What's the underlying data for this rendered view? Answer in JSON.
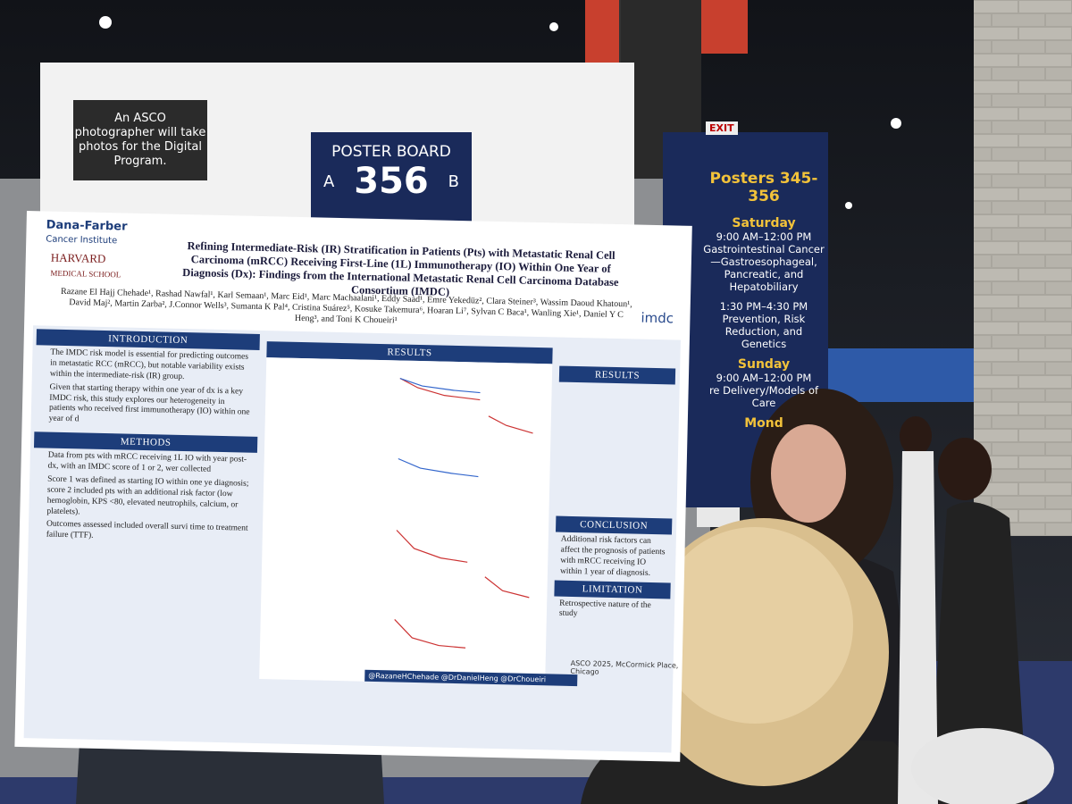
{
  "photo_sign": {
    "text": "An ASCO photographer will take photos for the Digital Program."
  },
  "board_sign": {
    "label": "POSTER BOARD",
    "left": "A",
    "number": "356",
    "right": "B"
  },
  "exit_sign": "EXIT",
  "session_sign": {
    "title": "Posters 345-356",
    "entries": [
      {
        "day": "Saturday"
      },
      {
        "time": "9:00 AM–12:00 PM",
        "topic": "Gastrointestinal Cancer—Gastroesophageal, Pancreatic, and Hepatobiliary"
      },
      {
        "time": "1:30 PM–4:30 PM",
        "topic": "Prevention, Risk Reduction, and Genetics"
      },
      {
        "day": "Sunday"
      },
      {
        "time": "9:00 AM–12:00 PM",
        "topic": "re Delivery/Models of Care"
      },
      {
        "day": "Mond"
      }
    ]
  },
  "poster": {
    "logo_1": "Dana-Farber",
    "logo_1_sub": "Cancer Institute",
    "logo_2": "HARVARD",
    "logo_2_sub": "MEDICAL SCHOOL",
    "logo_3": "imdc",
    "title": "Refining Intermediate-Risk (IR) Stratification in Patients (Pts) with Metastatic Renal Cell Carcinoma (mRCC) Receiving First-Line (1L) Immunotherapy (IO) Within One Year of Diagnosis (Dx): Findings from the International Metastatic Renal Cell Carcinoma Database Consortium (IMDC)",
    "authors": "Razane El Hajj Chehade¹, Rashad Nawfal¹, Karl Semaan¹, Marc Eid¹, Marc Machaalani¹, Eddy Saad¹, Emre Yekedüz², Clara Steiner³, Wassim Daoud Khatoun¹, David Maj², Martin Zarba², J.Connor Wells³, Sumanta K Pal⁴, Cristina Suárez⁵, Kosuke Takemura⁶, Hoaran Li⁷, Sylvan C Baca¹, Wanling Xie¹, Daniel Y C Heng³, and Toni K Choueiri¹",
    "sections": {
      "introduction": "INTRODUCTION",
      "methods": "METHODS",
      "results": "RESULTS",
      "results_2": "RESULTS",
      "conclusion": "CONCLUSION",
      "limitation": "LIMITATION"
    },
    "intro_bullets": [
      "The IMDC risk model is essential for predicting outcomes in metastatic RCC (mRCC), but notable variability exists within the intermediate-risk (IR) group.",
      "Given that starting therapy within one year of dx is a key IMDC risk, this study explores our heterogeneity in patients who received first immunotherapy (IO) within one year of d"
    ],
    "methods_bullets": [
      "Data from pts with mRCC receiving 1L IO with year post-dx, with an IMDC score of 1 or 2, wer collected",
      "Score 1 was defined as starting IO within one ye diagnosis; score 2 included pts with an additional risk factor (low hemoglobin, KPS <80, elevated neutrophils, calcium, or platelets).",
      "Outcomes assessed included overall survi time to treatment failure (TTF)."
    ],
    "conclusion_text": "Additional risk factors can affect the prognosis of patients with mRCC receiving IO within 1 year of diagnosis.",
    "limitation_text": "Retrospective nature of the study",
    "handles": "@RazaneHChehade @DrDanielHeng @DrChoueiri",
    "venue": "ASCO 2025, McCormick Place, Chicago"
  }
}
